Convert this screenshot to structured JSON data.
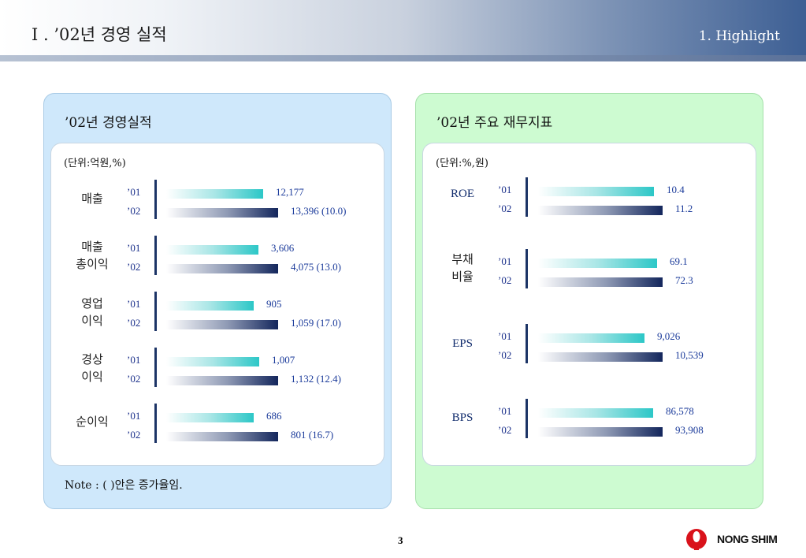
{
  "header": {
    "title": "I . ’02년 경영 실적",
    "subtitle": "1. Highlight"
  },
  "left_panel": {
    "title": "’02년 경영실적",
    "unit": "(단위:억원,%)",
    "note": "Note : ( )안은 증가율임.",
    "rows": [
      {
        "label_line1": "매출",
        "label_line2": "",
        "y01": "’01",
        "y02": "’02",
        "v01": 12177,
        "v02": 13396,
        "v01_text": "12,177",
        "v02_text": "13,396 (10.0)"
      },
      {
        "label_line1": "매출",
        "label_line2": "총이익",
        "y01": "’01",
        "y02": "’02",
        "v01": 3606,
        "v02": 4075,
        "v01_text": "3,606",
        "v02_text": "4,075 (13.0)"
      },
      {
        "label_line1": "영업",
        "label_line2": "이익",
        "y01": "’01",
        "y02": "’02",
        "v01": 905,
        "v02": 1059,
        "v01_text": "905",
        "v02_text": "1,059 (17.0)"
      },
      {
        "label_line1": "경상",
        "label_line2": "이익",
        "y01": "’01",
        "y02": "’02",
        "v01": 1007,
        "v02": 1132,
        "v01_text": "1,007",
        "v02_text": "1,132 (12.4)"
      },
      {
        "label_line1": "순이익",
        "label_line2": "",
        "y01": "’01",
        "y02": "’02",
        "v01": 686,
        "v02": 801,
        "v01_text": "686",
        "v02_text": "801 (16.7)"
      }
    ]
  },
  "right_panel": {
    "title": "’02년 주요 재무지표",
    "unit": "(단위:%,원)",
    "rows": [
      {
        "label_line1": "ROE",
        "label_line2": "",
        "y01": "’01",
        "y02": "’02",
        "v01": 10.4,
        "v02": 11.2,
        "v01_text": "10.4",
        "v02_text": "11.2"
      },
      {
        "label_line1": "부채",
        "label_line2": "비율",
        "y01": "’01",
        "y02": "’02",
        "v01": 69.1,
        "v02": 72.3,
        "v01_text": "69.1",
        "v02_text": "72.3"
      },
      {
        "label_line1": "EPS",
        "label_line2": "",
        "y01": "’01",
        "y02": "’02",
        "v01": 9026,
        "v02": 10539,
        "v01_text": "9,026",
        "v02_text": "10,539"
      },
      {
        "label_line1": "BPS",
        "label_line2": "",
        "y01": "’01",
        "y02": "’02",
        "v01": 86578,
        "v02": 93908,
        "v01_text": "86,578",
        "v02_text": "93,908"
      }
    ]
  },
  "footer": {
    "page_number": "3",
    "logo_text": "NONG SHIM"
  },
  "colors": {
    "bar_01": "#2cc7c7",
    "bar_02": "#13265c",
    "value_text": "#1a3a9a",
    "left_panel_bg": "#cfe8fb",
    "right_panel_bg": "#cdfbd1"
  },
  "chart_data": [
    {
      "type": "bar",
      "title": "’02년 경영실적",
      "categories": [
        "매출",
        "매출 총이익",
        "영업 이익",
        "경상 이익",
        "순이익"
      ],
      "series": [
        {
          "name": "’01",
          "values": [
            12177,
            3606,
            905,
            1007,
            686
          ]
        },
        {
          "name": "’02",
          "values": [
            13396,
            4075,
            1059,
            1132,
            801
          ]
        }
      ]
    },
    {
      "type": "bar",
      "title": "’02년 주요 재무지표",
      "categories": [
        "ROE",
        "부채 비율",
        "EPS",
        "BPS"
      ],
      "series": [
        {
          "name": "’01",
          "values": [
            10.4,
            69.1,
            9026,
            86578
          ]
        },
        {
          "name": "’02",
          "values": [
            11.2,
            72.3,
            10539,
            93908
          ]
        }
      ]
    }
  ]
}
